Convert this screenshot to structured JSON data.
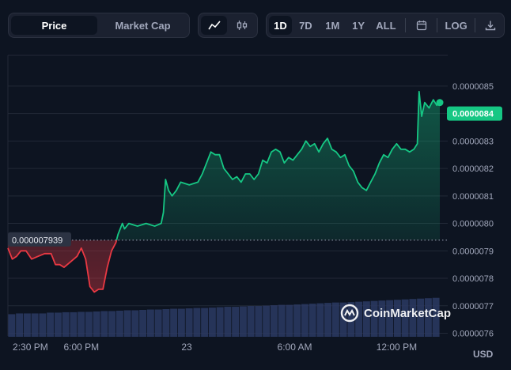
{
  "toolbar": {
    "metric_tabs": [
      {
        "label": "Price",
        "active": true
      },
      {
        "label": "Market Cap",
        "active": false
      }
    ],
    "chart_type_icons": [
      "line-chart-icon",
      "candlestick-icon"
    ],
    "ranges": [
      {
        "label": "1D",
        "active": true
      },
      {
        "label": "7D",
        "active": false
      },
      {
        "label": "1M",
        "active": false
      },
      {
        "label": "1Y",
        "active": false
      },
      {
        "label": "ALL",
        "active": false
      }
    ],
    "calendar_icon": "calendar-icon",
    "log_label": "LOG",
    "download_icon": "download-icon"
  },
  "watermark": {
    "text": "CoinMarketCap",
    "icon": "coinmarketcap-logo"
  },
  "currency_label": "USD",
  "colors": {
    "up": "#16c784",
    "down": "#ea3943",
    "background": "#0d1421",
    "volume": "#2b3a63"
  },
  "chart_data": {
    "type": "line",
    "title": "",
    "xlabel": "",
    "ylabel": "",
    "x_tick_labels": [
      "2:30 PM",
      "6:00 PM",
      "23",
      "6:00 AM",
      "12:00 PM"
    ],
    "y_tick_labels": [
      "0.0000085",
      "0.0000084",
      "0.0000083",
      "0.0000082",
      "0.0000081",
      "0.0000080",
      "0.0000079",
      "0.0000078",
      "0.0000077",
      "0.0000076"
    ],
    "ylim": [
      7.59e-06,
      8.56e-06
    ],
    "xlim": [
      0,
      1
    ],
    "baseline": {
      "value": 7.939e-06,
      "label": "0.000007939"
    },
    "current_price": {
      "value": 8.4e-06,
      "label": "0.0000084"
    },
    "x_tick_positions": [
      0.052,
      0.17,
      0.414,
      0.664,
      0.9
    ],
    "points": [
      [
        0.0,
        7.91e-06
      ],
      [
        0.01,
        7.87e-06
      ],
      [
        0.02,
        7.88e-06
      ],
      [
        0.03,
        7.9e-06
      ],
      [
        0.042,
        7.9e-06
      ],
      [
        0.055,
        7.87e-06
      ],
      [
        0.07,
        7.88e-06
      ],
      [
        0.085,
        7.89e-06
      ],
      [
        0.1,
        7.89e-06
      ],
      [
        0.11,
        7.85e-06
      ],
      [
        0.12,
        7.85e-06
      ],
      [
        0.13,
        7.84e-06
      ],
      [
        0.145,
        7.86e-06
      ],
      [
        0.16,
        7.88e-06
      ],
      [
        0.17,
        7.91e-06
      ],
      [
        0.18,
        7.87e-06
      ],
      [
        0.19,
        7.77e-06
      ],
      [
        0.2,
        7.75e-06
      ],
      [
        0.21,
        7.76e-06
      ],
      [
        0.22,
        7.76e-06
      ],
      [
        0.23,
        7.84e-06
      ],
      [
        0.24,
        7.9e-06
      ],
      [
        0.25,
        7.93e-06
      ],
      [
        0.255,
        7.96e-06
      ],
      [
        0.265,
        8e-06
      ],
      [
        0.27,
        7.98e-06
      ],
      [
        0.28,
        8e-06
      ],
      [
        0.3,
        7.99e-06
      ],
      [
        0.32,
        8e-06
      ],
      [
        0.34,
        7.99e-06
      ],
      [
        0.355,
        8e-06
      ],
      [
        0.36,
        8.04e-06
      ],
      [
        0.365,
        8.16e-06
      ],
      [
        0.372,
        8.12e-06
      ],
      [
        0.38,
        8.1e-06
      ],
      [
        0.39,
        8.12e-06
      ],
      [
        0.4,
        8.15e-06
      ],
      [
        0.42,
        8.14e-06
      ],
      [
        0.44,
        8.15e-06
      ],
      [
        0.45,
        8.18e-06
      ],
      [
        0.46,
        8.22e-06
      ],
      [
        0.47,
        8.26e-06
      ],
      [
        0.48,
        8.25e-06
      ],
      [
        0.49,
        8.25e-06
      ],
      [
        0.5,
        8.2e-06
      ],
      [
        0.51,
        8.18e-06
      ],
      [
        0.52,
        8.16e-06
      ],
      [
        0.53,
        8.17e-06
      ],
      [
        0.54,
        8.15e-06
      ],
      [
        0.55,
        8.18e-06
      ],
      [
        0.56,
        8.18e-06
      ],
      [
        0.57,
        8.16e-06
      ],
      [
        0.58,
        8.18e-06
      ],
      [
        0.59,
        8.23e-06
      ],
      [
        0.6,
        8.22e-06
      ],
      [
        0.61,
        8.26e-06
      ],
      [
        0.62,
        8.27e-06
      ],
      [
        0.63,
        8.26e-06
      ],
      [
        0.64,
        8.22e-06
      ],
      [
        0.65,
        8.24e-06
      ],
      [
        0.66,
        8.23e-06
      ],
      [
        0.67,
        8.25e-06
      ],
      [
        0.68,
        8.27e-06
      ],
      [
        0.69,
        8.3e-06
      ],
      [
        0.7,
        8.28e-06
      ],
      [
        0.71,
        8.29e-06
      ],
      [
        0.72,
        8.26e-06
      ],
      [
        0.73,
        8.29e-06
      ],
      [
        0.74,
        8.31e-06
      ],
      [
        0.75,
        8.27e-06
      ],
      [
        0.76,
        8.26e-06
      ],
      [
        0.77,
        8.24e-06
      ],
      [
        0.78,
        8.25e-06
      ],
      [
        0.79,
        8.21e-06
      ],
      [
        0.8,
        8.19e-06
      ],
      [
        0.81,
        8.15e-06
      ],
      [
        0.82,
        8.13e-06
      ],
      [
        0.83,
        8.12e-06
      ],
      [
        0.84,
        8.15e-06
      ],
      [
        0.85,
        8.18e-06
      ],
      [
        0.86,
        8.22e-06
      ],
      [
        0.87,
        8.25e-06
      ],
      [
        0.88,
        8.24e-06
      ],
      [
        0.89,
        8.27e-06
      ],
      [
        0.9,
        8.29e-06
      ],
      [
        0.91,
        8.27e-06
      ],
      [
        0.92,
        8.27e-06
      ],
      [
        0.93,
        8.26e-06
      ],
      [
        0.94,
        8.27e-06
      ],
      [
        0.948,
        8.29e-06
      ],
      [
        0.952,
        8.48e-06
      ],
      [
        0.958,
        8.39e-06
      ],
      [
        0.965,
        8.44e-06
      ],
      [
        0.975,
        8.42e-06
      ],
      [
        0.985,
        8.45e-06
      ],
      [
        0.993,
        8.43e-06
      ],
      [
        1.0,
        8.44e-06
      ]
    ],
    "volume_series": {
      "name": "",
      "relative_values": [
        0.58,
        0.6,
        0.6,
        0.6,
        0.6,
        0.62,
        0.62,
        0.63,
        0.63,
        0.64,
        0.64,
        0.65,
        0.66,
        0.66,
        0.67,
        0.68,
        0.68,
        0.69,
        0.7,
        0.7,
        0.71,
        0.72,
        0.72,
        0.73,
        0.74,
        0.74,
        0.75,
        0.76,
        0.77,
        0.77,
        0.78,
        0.79,
        0.79,
        0.8,
        0.81,
        0.82,
        0.82,
        0.83,
        0.84,
        0.85,
        0.86,
        0.87,
        0.88,
        0.88,
        0.89,
        0.9,
        0.91,
        0.92,
        0.93,
        0.94,
        0.95,
        0.96,
        0.97,
        0.98,
        0.99,
        1.0
      ]
    },
    "grid": true,
    "legend": "none"
  }
}
